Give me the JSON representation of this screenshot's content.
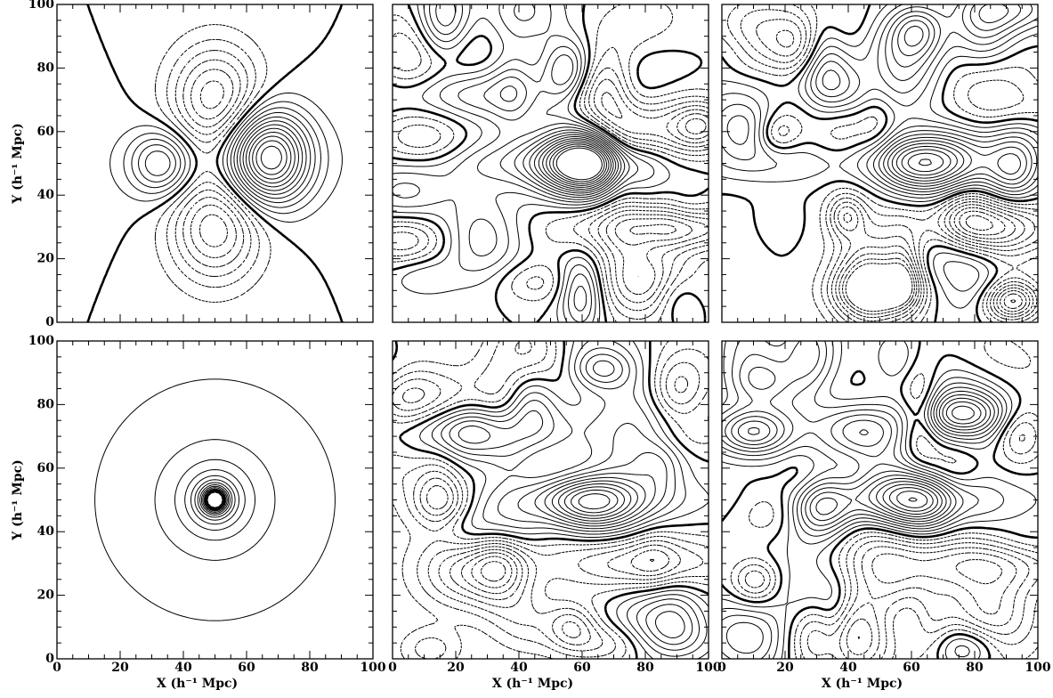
{
  "chart_data": [
    {
      "type": "contour",
      "xlim": [
        0,
        100
      ],
      "ylim": [
        0,
        100
      ],
      "yticks": [
        0,
        20,
        40,
        60,
        80,
        100
      ],
      "ylabel": "Y (h⁻¹ Mpc)"
    },
    {
      "type": "contour",
      "xlim": [
        0,
        100
      ],
      "ylim": [
        0,
        100
      ]
    },
    {
      "type": "contour",
      "xlim": [
        0,
        100
      ],
      "ylim": [
        0,
        100
      ]
    },
    {
      "type": "contour",
      "xlim": [
        0,
        100
      ],
      "ylim": [
        0,
        100
      ],
      "xticks": [
        0,
        20,
        40,
        60,
        80,
        100
      ],
      "yticks": [
        0,
        20,
        40,
        60,
        80,
        100
      ],
      "xlabel": "X (h⁻¹ Mpc)",
      "ylabel": "Y (h⁻¹ Mpc)"
    },
    {
      "type": "contour",
      "xlim": [
        0,
        100
      ],
      "ylim": [
        0,
        100
      ],
      "xticks": [
        0,
        20,
        40,
        60,
        80,
        100
      ],
      "xlabel": "X (h⁻¹ Mpc)"
    },
    {
      "type": "contour",
      "xlim": [
        0,
        100
      ],
      "ylim": [
        0,
        100
      ],
      "xticks": [
        0,
        20,
        40,
        60,
        80,
        100
      ],
      "xlabel": "X (h⁻¹ Mpc)"
    }
  ]
}
